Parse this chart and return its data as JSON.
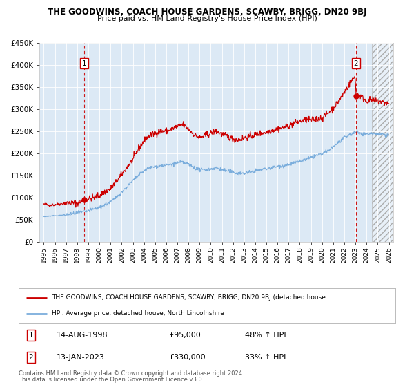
{
  "title": "THE GOODWINS, COACH HOUSE GARDENS, SCAWBY, BRIGG, DN20 9BJ",
  "subtitle": "Price paid vs. HM Land Registry's House Price Index (HPI)",
  "ylim": [
    0,
    450000
  ],
  "yticks": [
    0,
    50000,
    100000,
    150000,
    200000,
    250000,
    300000,
    350000,
    400000,
    450000
  ],
  "xlim_start": 1994.6,
  "xlim_end": 2026.4,
  "background_color": "#dce6f1",
  "plot_bg_color": "#dce9f5",
  "red_line_color": "#cc0000",
  "blue_line_color": "#7aaddc",
  "sale1_x": 1998.617,
  "sale1_y": 95000,
  "sale1_label": "1",
  "sale1_date": "14-AUG-1998",
  "sale1_price": "£95,000",
  "sale1_hpi": "48% ↑ HPI",
  "sale2_x": 2023.036,
  "sale2_y": 330000,
  "sale2_label": "2",
  "sale2_date": "13-JAN-2023",
  "sale2_price": "£330,000",
  "sale2_hpi": "33% ↑ HPI",
  "legend_line1": "THE GOODWINS, COACH HOUSE GARDENS, SCAWBY, BRIGG, DN20 9BJ (detached house",
  "legend_line2": "HPI: Average price, detached house, North Lincolnshire",
  "footer1": "Contains HM Land Registry data © Crown copyright and database right 2024.",
  "footer2": "This data is licensed under the Open Government Licence v3.0.",
  "future_start": 2024.5,
  "x_tick_years": [
    1995,
    1996,
    1997,
    1998,
    1999,
    2000,
    2001,
    2002,
    2003,
    2004,
    2005,
    2006,
    2007,
    2008,
    2009,
    2010,
    2011,
    2012,
    2013,
    2014,
    2015,
    2016,
    2017,
    2018,
    2019,
    2020,
    2021,
    2022,
    2023,
    2024,
    2025,
    2026
  ]
}
